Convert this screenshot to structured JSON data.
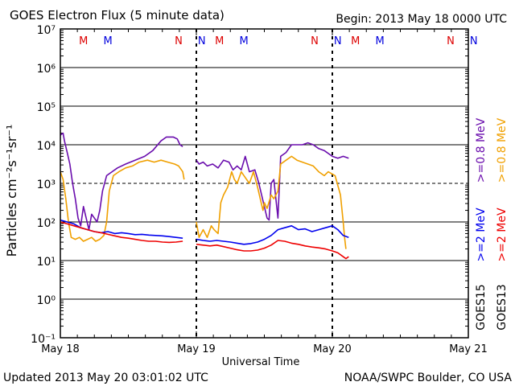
{
  "chart_data": {
    "type": "line",
    "title": "GOES Electron Flux (5 minute data)",
    "begin_label": "Begin: 2013 May 18 0000 UTC",
    "xlabel": "Universal Time",
    "ylabel": "Particles cm⁻²s⁻¹sr⁻¹",
    "xlim_days": [
      0,
      3
    ],
    "ylim_log10": [
      -1,
      7
    ],
    "yscale": "log",
    "x_ticks": [
      {
        "day": 0,
        "label": "May 18"
      },
      {
        "day": 1,
        "label": "May 19"
      },
      {
        "day": 2,
        "label": "May 20"
      },
      {
        "day": 3,
        "label": "May 21"
      }
    ],
    "y_ticks": [
      {
        "exp": -1,
        "label": "10⁻¹"
      },
      {
        "exp": 0,
        "label": "10⁰"
      },
      {
        "exp": 1,
        "label": "10¹"
      },
      {
        "exp": 2,
        "label": "10²"
      },
      {
        "exp": 3,
        "label": "10³"
      },
      {
        "exp": 4,
        "label": "10⁴"
      },
      {
        "exp": 5,
        "label": "10⁵"
      },
      {
        "exp": 6,
        "label": "10⁶"
      },
      {
        "exp": 7,
        "label": "10⁷"
      }
    ],
    "threshold_line_exp": 3,
    "day_boundaries_dashed": [
      1,
      2
    ],
    "markers": [
      {
        "day": 0.17,
        "label": "M",
        "color": "#dd0000"
      },
      {
        "day": 0.35,
        "label": "M",
        "color": "#0000dd"
      },
      {
        "day": 0.87,
        "label": "N",
        "color": "#dd0000"
      },
      {
        "day": 1.04,
        "label": "N",
        "color": "#0000dd"
      },
      {
        "day": 1.17,
        "label": "M",
        "color": "#dd0000"
      },
      {
        "day": 1.35,
        "label": "M",
        "color": "#0000dd"
      },
      {
        "day": 1.87,
        "label": "N",
        "color": "#dd0000"
      },
      {
        "day": 2.04,
        "label": "N",
        "color": "#0000dd"
      },
      {
        "day": 2.17,
        "label": "M",
        "color": "#dd0000"
      },
      {
        "day": 2.35,
        "label": "M",
        "color": "#0000dd"
      },
      {
        "day": 2.87,
        "label": "N",
        "color": "#dd0000"
      },
      {
        "day": 3.04,
        "label": "N",
        "color": "#0000dd"
      }
    ],
    "legend": {
      "placement": "right",
      "columns": [
        {
          "satellite": "GOES15",
          "items": [
            {
              "label": ">=2 MeV",
              "color": "#0000ee"
            },
            {
              "label": ">=0.8 MeV",
              "color": "#6a0dad"
            }
          ]
        },
        {
          "satellite": "GOES13",
          "items": [
            {
              "label": ">=2 MeV",
              "color": "#ee0000"
            },
            {
              "label": ">=0.8 MeV",
              "color": "#f0a000"
            }
          ]
        }
      ]
    },
    "series": [
      {
        "name": "GOES15 >=0.8 MeV",
        "color": "#6a0dad",
        "segments": [
          [
            [
              0.0,
              4.25
            ],
            [
              0.02,
              4.3
            ],
            [
              0.03,
              4.1
            ],
            [
              0.05,
              3.8
            ],
            [
              0.07,
              3.5
            ],
            [
              0.09,
              3.0
            ],
            [
              0.11,
              2.6
            ],
            [
              0.13,
              2.1
            ],
            [
              0.15,
              1.9
            ],
            [
              0.17,
              2.4
            ],
            [
              0.19,
              2.1
            ],
            [
              0.21,
              1.8
            ],
            [
              0.23,
              2.2
            ],
            [
              0.25,
              2.1
            ],
            [
              0.27,
              2.0
            ],
            [
              0.29,
              2.3
            ],
            [
              0.31,
              2.8
            ],
            [
              0.34,
              3.2
            ],
            [
              0.38,
              3.3
            ],
            [
              0.42,
              3.4
            ],
            [
              0.48,
              3.5
            ],
            [
              0.55,
              3.6
            ],
            [
              0.62,
              3.7
            ],
            [
              0.68,
              3.85
            ],
            [
              0.74,
              4.1
            ],
            [
              0.78,
              4.2
            ],
            [
              0.83,
              4.2
            ],
            [
              0.86,
              4.15
            ],
            [
              0.88,
              4.0
            ],
            [
              0.9,
              3.95
            ]
          ],
          [
            [
              1.0,
              3.6
            ],
            [
              1.02,
              3.5
            ],
            [
              1.05,
              3.55
            ],
            [
              1.08,
              3.45
            ],
            [
              1.12,
              3.5
            ],
            [
              1.16,
              3.4
            ],
            [
              1.2,
              3.6
            ],
            [
              1.24,
              3.55
            ],
            [
              1.27,
              3.35
            ],
            [
              1.3,
              3.45
            ],
            [
              1.33,
              3.35
            ],
            [
              1.36,
              3.7
            ],
            [
              1.39,
              3.3
            ],
            [
              1.43,
              3.35
            ],
            [
              1.46,
              3.0
            ],
            [
              1.48,
              2.7
            ],
            [
              1.5,
              2.4
            ],
            [
              1.52,
              2.1
            ],
            [
              1.535,
              2.05
            ],
            [
              1.55,
              3.0
            ],
            [
              1.57,
              3.1
            ],
            [
              1.6,
              2.1
            ],
            [
              1.62,
              3.7
            ],
            [
              1.66,
              3.8
            ],
            [
              1.7,
              4.0
            ],
            [
              1.74,
              4.0
            ],
            [
              1.78,
              4.0
            ],
            [
              1.82,
              4.05
            ],
            [
              1.86,
              4.0
            ],
            [
              1.9,
              3.9
            ],
            [
              1.94,
              3.85
            ],
            [
              2.0,
              3.7
            ],
            [
              2.04,
              3.65
            ],
            [
              2.08,
              3.7
            ],
            [
              2.12,
              3.65
            ]
          ]
        ]
      },
      {
        "name": "GOES13 >=0.8 MeV",
        "color": "#f0a000",
        "segments": [
          [
            [
              0.0,
              3.3
            ],
            [
              0.02,
              3.1
            ],
            [
              0.04,
              2.6
            ],
            [
              0.06,
              2.0
            ],
            [
              0.08,
              1.6
            ],
            [
              0.11,
              1.55
            ],
            [
              0.14,
              1.6
            ],
            [
              0.17,
              1.5
            ],
            [
              0.2,
              1.55
            ],
            [
              0.23,
              1.6
            ],
            [
              0.26,
              1.5
            ],
            [
              0.29,
              1.55
            ],
            [
              0.32,
              1.65
            ],
            [
              0.34,
              2.0
            ],
            [
              0.36,
              2.8
            ],
            [
              0.39,
              3.2
            ],
            [
              0.43,
              3.3
            ],
            [
              0.48,
              3.4
            ],
            [
              0.53,
              3.45
            ],
            [
              0.58,
              3.55
            ],
            [
              0.64,
              3.6
            ],
            [
              0.69,
              3.55
            ],
            [
              0.74,
              3.6
            ],
            [
              0.79,
              3.55
            ],
            [
              0.84,
              3.5
            ],
            [
              0.87,
              3.45
            ],
            [
              0.9,
              3.3
            ],
            [
              0.91,
              3.1
            ]
          ],
          [
            [
              1.0,
              2.0
            ],
            [
              1.02,
              1.6
            ],
            [
              1.05,
              1.8
            ],
            [
              1.08,
              1.6
            ],
            [
              1.11,
              1.9
            ],
            [
              1.13,
              1.8
            ],
            [
              1.16,
              1.7
            ],
            [
              1.18,
              2.5
            ],
            [
              1.2,
              2.7
            ],
            [
              1.23,
              2.9
            ],
            [
              1.26,
              3.3
            ],
            [
              1.28,
              3.1
            ],
            [
              1.3,
              3.0
            ],
            [
              1.33,
              3.3
            ],
            [
              1.36,
              3.15
            ],
            [
              1.39,
              3.0
            ],
            [
              1.42,
              3.3
            ],
            [
              1.45,
              2.9
            ],
            [
              1.47,
              2.6
            ],
            [
              1.49,
              2.3
            ],
            [
              1.5,
              2.5
            ],
            [
              1.52,
              2.35
            ],
            [
              1.55,
              2.7
            ],
            [
              1.57,
              2.6
            ],
            [
              1.6,
              2.8
            ],
            [
              1.62,
              3.5
            ],
            [
              1.66,
              3.6
            ],
            [
              1.7,
              3.7
            ],
            [
              1.74,
              3.6
            ],
            [
              1.78,
              3.55
            ],
            [
              1.82,
              3.5
            ],
            [
              1.86,
              3.45
            ],
            [
              1.9,
              3.3
            ],
            [
              1.94,
              3.2
            ],
            [
              1.97,
              3.3
            ],
            [
              2.02,
              3.2
            ],
            [
              2.06,
              2.7
            ],
            [
              2.08,
              2.0
            ],
            [
              2.09,
              1.6
            ],
            [
              2.1,
              1.3
            ]
          ]
        ]
      },
      {
        "name": "GOES15 >=2 MeV",
        "color": "#0000ee",
        "segments": [
          [
            [
              0.0,
              2.05
            ],
            [
              0.05,
              2.0
            ],
            [
              0.1,
              1.95
            ],
            [
              0.15,
              1.85
            ],
            [
              0.2,
              1.8
            ],
            [
              0.25,
              1.75
            ],
            [
              0.3,
              1.72
            ],
            [
              0.35,
              1.75
            ],
            [
              0.4,
              1.7
            ],
            [
              0.45,
              1.72
            ],
            [
              0.5,
              1.7
            ],
            [
              0.55,
              1.67
            ],
            [
              0.6,
              1.68
            ],
            [
              0.65,
              1.66
            ],
            [
              0.7,
              1.65
            ],
            [
              0.75,
              1.64
            ],
            [
              0.8,
              1.62
            ],
            [
              0.85,
              1.6
            ],
            [
              0.9,
              1.58
            ]
          ],
          [
            [
              1.0,
              1.55
            ],
            [
              1.05,
              1.52
            ],
            [
              1.1,
              1.5
            ],
            [
              1.15,
              1.52
            ],
            [
              1.2,
              1.5
            ],
            [
              1.25,
              1.48
            ],
            [
              1.3,
              1.45
            ],
            [
              1.35,
              1.42
            ],
            [
              1.4,
              1.44
            ],
            [
              1.45,
              1.48
            ],
            [
              1.5,
              1.55
            ],
            [
              1.55,
              1.65
            ],
            [
              1.6,
              1.8
            ],
            [
              1.65,
              1.85
            ],
            [
              1.7,
              1.9
            ],
            [
              1.75,
              1.8
            ],
            [
              1.8,
              1.82
            ],
            [
              1.85,
              1.75
            ],
            [
              1.9,
              1.8
            ],
            [
              1.95,
              1.85
            ],
            [
              2.0,
              1.9
            ],
            [
              2.04,
              1.8
            ],
            [
              2.08,
              1.65
            ],
            [
              2.12,
              1.6
            ]
          ]
        ]
      },
      {
        "name": "GOES13 >=2 MeV",
        "color": "#ee0000",
        "segments": [
          [
            [
              0.0,
              2.0
            ],
            [
              0.05,
              1.95
            ],
            [
              0.1,
              1.9
            ],
            [
              0.15,
              1.85
            ],
            [
              0.2,
              1.8
            ],
            [
              0.25,
              1.75
            ],
            [
              0.3,
              1.72
            ],
            [
              0.35,
              1.68
            ],
            [
              0.4,
              1.64
            ],
            [
              0.45,
              1.6
            ],
            [
              0.5,
              1.58
            ],
            [
              0.55,
              1.55
            ],
            [
              0.6,
              1.52
            ],
            [
              0.65,
              1.5
            ],
            [
              0.7,
              1.5
            ],
            [
              0.75,
              1.48
            ],
            [
              0.8,
              1.47
            ],
            [
              0.85,
              1.48
            ],
            [
              0.9,
              1.5
            ]
          ],
          [
            [
              1.0,
              1.42
            ],
            [
              1.05,
              1.4
            ],
            [
              1.1,
              1.38
            ],
            [
              1.15,
              1.4
            ],
            [
              1.2,
              1.36
            ],
            [
              1.25,
              1.32
            ],
            [
              1.3,
              1.28
            ],
            [
              1.35,
              1.25
            ],
            [
              1.4,
              1.25
            ],
            [
              1.45,
              1.27
            ],
            [
              1.5,
              1.32
            ],
            [
              1.55,
              1.4
            ],
            [
              1.6,
              1.52
            ],
            [
              1.65,
              1.5
            ],
            [
              1.7,
              1.45
            ],
            [
              1.75,
              1.42
            ],
            [
              1.8,
              1.38
            ],
            [
              1.85,
              1.35
            ],
            [
              1.9,
              1.33
            ],
            [
              1.95,
              1.3
            ],
            [
              2.0,
              1.25
            ],
            [
              2.04,
              1.2
            ],
            [
              2.08,
              1.1
            ],
            [
              2.1,
              1.05
            ],
            [
              2.12,
              1.1
            ]
          ]
        ]
      }
    ]
  },
  "footer": {
    "updated": "Updated 2013 May 20 03:01:02 UTC",
    "source": "NOAA/SWPC Boulder, CO USA"
  }
}
